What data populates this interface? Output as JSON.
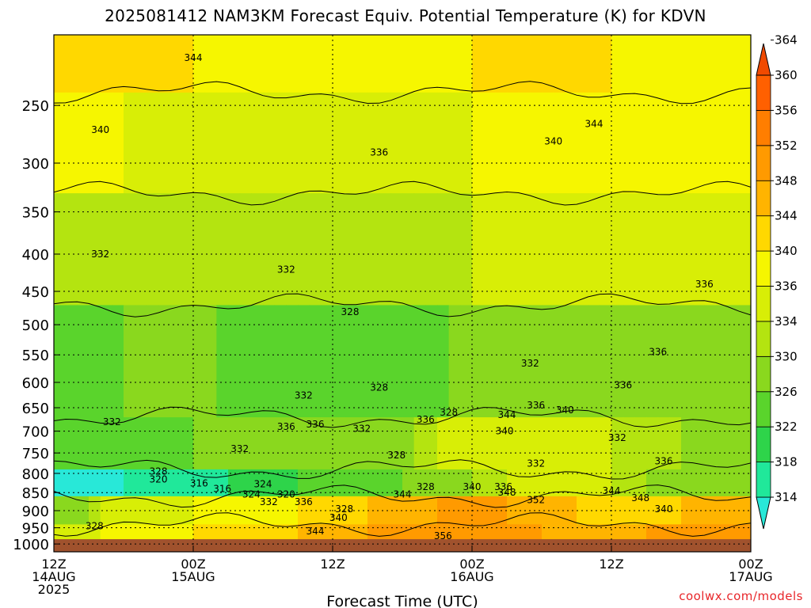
{
  "chart_data": {
    "type": "heatmap",
    "title": "2025081412 NAM3KM Forecast Equiv. Potential Temperature (K) for KDVN",
    "xlabel": "Forecast Time (UTC)",
    "ylabel": "",
    "y_axis_ticks": [
      "250",
      "300",
      "350",
      "400",
      "450",
      "500",
      "550",
      "600",
      "650",
      "700",
      "750",
      "800",
      "850",
      "900",
      "950",
      "1000"
    ],
    "x_axis_ticks": [
      {
        "time": "12Z",
        "date": "14AUG",
        "year": "2025"
      },
      {
        "time": "00Z",
        "date": "15AUG",
        "year": ""
      },
      {
        "time": "12Z",
        "date": "",
        "year": ""
      },
      {
        "time": "00Z",
        "date": "16AUG",
        "year": ""
      },
      {
        "time": "12Z",
        "date": "",
        "year": ""
      },
      {
        "time": "00Z",
        "date": "17AUG",
        "year": ""
      }
    ],
    "x_range_hours": [
      0,
      60
    ],
    "y_range_hPa": [
      200,
      1025
    ],
    "y_scale": "log-pressure",
    "grid": true,
    "colorbar": {
      "levels": [
        314,
        318,
        322,
        326,
        330,
        334,
        336,
        340,
        344,
        348,
        352,
        356,
        360,
        364
      ],
      "colors": [
        "#28e8d8",
        "#20e89a",
        "#2ed44a",
        "#5ad42c",
        "#8ad81e",
        "#b4e410",
        "#d8ee06",
        "#f6f600",
        "#ffd800",
        "#ffb400",
        "#ff9a00",
        "#ff7e00",
        "#ff6000",
        "#f04a00"
      ]
    },
    "series": [
      {
        "x": [
          0,
          6,
          12,
          18,
          24,
          30,
          36,
          42,
          48,
          54,
          60
        ],
        "y": [
          344,
          346,
          344,
          343,
          342,
          343,
          344,
          345,
          344,
          343,
          344
        ],
        "row": "200-240 hPa"
      },
      {
        "x": [
          0,
          6,
          12,
          18,
          24,
          30,
          36,
          42,
          48,
          54,
          60
        ],
        "y": [
          341,
          340,
          339,
          338,
          338,
          339,
          340,
          341,
          342,
          342,
          342
        ],
        "row": "250-300 hPa"
      },
      {
        "x": [
          0,
          6,
          12,
          18,
          24,
          30,
          36,
          42,
          48,
          54,
          60
        ],
        "y": [
          335,
          336,
          335,
          334,
          334,
          335,
          336,
          338,
          338,
          337,
          338
        ],
        "row": "350-450 hPa"
      },
      {
        "x": [
          0,
          6,
          12,
          18,
          24,
          30,
          36,
          42,
          48,
          54,
          60
        ],
        "y": [
          328,
          330,
          331,
          328,
          326,
          328,
          331,
          334,
          333,
          333,
          334
        ],
        "row": "500-650 hPa"
      },
      {
        "x": [
          0,
          6,
          12,
          18,
          24,
          30,
          36,
          42,
          48,
          54,
          60
        ],
        "y": [
          326,
          328,
          330,
          332,
          330,
          332,
          340,
          338,
          336,
          334,
          333
        ],
        "row": "700-780 hPa"
      },
      {
        "x": [
          0,
          6,
          12,
          18,
          24,
          30,
          36,
          42,
          48,
          54,
          60
        ],
        "y": [
          316,
          318,
          320,
          324,
          328,
          330,
          334,
          338,
          336,
          332,
          330
        ],
        "row": "800-850 hPa"
      },
      {
        "x": [
          0,
          6,
          12,
          18,
          24,
          30,
          36,
          42,
          48,
          54,
          60
        ],
        "y": [
          330,
          338,
          340,
          342,
          346,
          350,
          354,
          350,
          346,
          348,
          352
        ],
        "row": "870-930 hPa"
      },
      {
        "x": [
          0,
          6,
          12,
          18,
          24,
          30,
          36,
          42,
          48,
          54,
          60
        ],
        "y": [
          336,
          342,
          344,
          346,
          350,
          354,
          356,
          352,
          350,
          354,
          356
        ],
        "row": "950-990 hPa"
      }
    ],
    "contour_labels": [
      {
        "text": "344",
        "x": 12,
        "p": 215
      },
      {
        "text": "340",
        "x": 4,
        "p": 270
      },
      {
        "text": "336",
        "x": 28,
        "p": 290
      },
      {
        "text": "340",
        "x": 43,
        "p": 280
      },
      {
        "text": "344",
        "x": 46.5,
        "p": 265
      },
      {
        "text": "332",
        "x": 4,
        "p": 400
      },
      {
        "text": "332",
        "x": 20,
        "p": 420
      },
      {
        "text": "328",
        "x": 25.5,
        "p": 480
      },
      {
        "text": "336",
        "x": 56,
        "p": 440
      },
      {
        "text": "336",
        "x": 52,
        "p": 545
      },
      {
        "text": "332",
        "x": 41,
        "p": 565
      },
      {
        "text": "336",
        "x": 49,
        "p": 605
      },
      {
        "text": "328",
        "x": 28,
        "p": 610
      },
      {
        "text": "332",
        "x": 21.5,
        "p": 625
      },
      {
        "text": "332",
        "x": 5,
        "p": 680
      },
      {
        "text": "336",
        "x": 20,
        "p": 690
      },
      {
        "text": "336",
        "x": 22.5,
        "p": 685
      },
      {
        "text": "336",
        "x": 32,
        "p": 675
      },
      {
        "text": "328",
        "x": 34,
        "p": 660
      },
      {
        "text": "344",
        "x": 39,
        "p": 665
      },
      {
        "text": "336",
        "x": 41.5,
        "p": 645
      },
      {
        "text": "340",
        "x": 44,
        "p": 655
      },
      {
        "text": "340",
        "x": 38.8,
        "p": 700
      },
      {
        "text": "332",
        "x": 26.5,
        "p": 695
      },
      {
        "text": "332",
        "x": 48.5,
        "p": 715
      },
      {
        "text": "332",
        "x": 16,
        "p": 740
      },
      {
        "text": "328",
        "x": 29.5,
        "p": 755
      },
      {
        "text": "332",
        "x": 41.5,
        "p": 775
      },
      {
        "text": "336",
        "x": 52.5,
        "p": 770
      },
      {
        "text": "328",
        "x": 9,
        "p": 795
      },
      {
        "text": "320",
        "x": 9,
        "p": 815
      },
      {
        "text": "316",
        "x": 12.5,
        "p": 825
      },
      {
        "text": "316",
        "x": 14.5,
        "p": 840
      },
      {
        "text": "324",
        "x": 18,
        "p": 828
      },
      {
        "text": "324",
        "x": 17,
        "p": 855
      },
      {
        "text": "320",
        "x": 20,
        "p": 855
      },
      {
        "text": "332",
        "x": 18.5,
        "p": 875
      },
      {
        "text": "336",
        "x": 21.5,
        "p": 875
      },
      {
        "text": "328",
        "x": 25,
        "p": 895
      },
      {
        "text": "344",
        "x": 30,
        "p": 855
      },
      {
        "text": "328",
        "x": 32,
        "p": 835
      },
      {
        "text": "340",
        "x": 36,
        "p": 835
      },
      {
        "text": "336",
        "x": 38.7,
        "p": 835
      },
      {
        "text": "348",
        "x": 39,
        "p": 850
      },
      {
        "text": "352",
        "x": 41.5,
        "p": 870
      },
      {
        "text": "344",
        "x": 48,
        "p": 845
      },
      {
        "text": "348",
        "x": 50.5,
        "p": 865
      },
      {
        "text": "340",
        "x": 52.5,
        "p": 895
      },
      {
        "text": "340",
        "x": 24.5,
        "p": 920
      },
      {
        "text": "344",
        "x": 22.5,
        "p": 960
      },
      {
        "text": "328",
        "x": 3.5,
        "p": 945
      },
      {
        "text": "356",
        "x": 33.5,
        "p": 975
      }
    ],
    "annotations": [
      "coolwx.com/models"
    ]
  }
}
